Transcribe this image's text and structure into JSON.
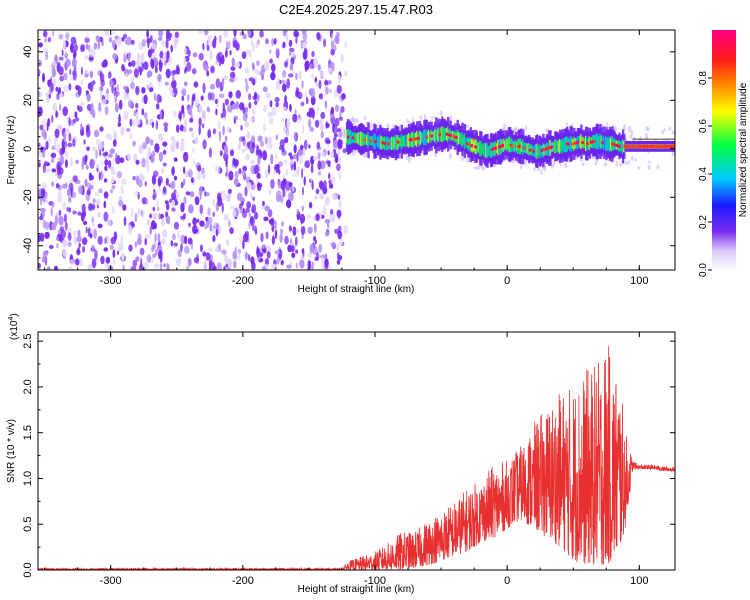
{
  "title": "C2E4.2025.297.15.47.R03",
  "chart_data": [
    {
      "type": "heatmap",
      "xlabel": "Height of straight line (km)",
      "ylabel": "Frequency (Hz)",
      "xlim": [
        -355,
        127
      ],
      "ylim": [
        -50,
        49
      ],
      "xticks": [
        -300,
        -200,
        -100,
        0,
        100
      ],
      "yticks": [
        -40,
        -20,
        0,
        20,
        40
      ],
      "noise_region": [
        -355,
        -122
      ],
      "signal_trace": {
        "x": [
          -122,
          -110,
          -100,
          -90,
          -80,
          -70,
          -60,
          -50,
          -45,
          -40,
          -35,
          -30,
          -25,
          -20,
          -15,
          -10,
          -5,
          0,
          5,
          10,
          15,
          20,
          25,
          30,
          35,
          40,
          45,
          50,
          55,
          60,
          65,
          70,
          75,
          80,
          85,
          90,
          100,
          110,
          120,
          127
        ],
        "y": [
          5,
          4,
          3,
          2,
          3,
          4,
          5,
          6,
          6,
          5,
          4,
          2,
          1,
          0,
          -1,
          0,
          1,
          2,
          1,
          1,
          0,
          -1,
          -1,
          0,
          1,
          1,
          2,
          2,
          3,
          2,
          3,
          3,
          2,
          2,
          1,
          1,
          1,
          1,
          1,
          1
        ]
      },
      "colorbar": {
        "label": "Normalized spectral amplitude",
        "ticks": [
          "0.0",
          "0.2",
          "0.4",
          "0.6",
          "0.8"
        ],
        "range": [
          0,
          1
        ]
      }
    },
    {
      "type": "line",
      "xlabel": "Height of straight line (km)",
      "ylabel": "SNR (10 * v/v)",
      "scale_label": "(x10",
      "scale_exp": "4",
      "scale_close": ")",
      "xlim": [
        -355,
        127
      ],
      "ylim": [
        0,
        2.6
      ],
      "xticks": [
        -300,
        -200,
        -100,
        0,
        100
      ],
      "yticks": [
        "0.0",
        "0.5",
        "1.0",
        "1.5",
        "2.0",
        "2.5"
      ],
      "color": "#e83030",
      "envelope": {
        "x": [
          -355,
          -125,
          -120,
          -100,
          -90,
          -80,
          -70,
          -60,
          -50,
          -40,
          -30,
          -20,
          -10,
          0,
          10,
          20,
          30,
          40,
          50,
          60,
          70,
          75,
          80,
          85,
          90,
          95,
          100,
          110,
          120,
          127
        ],
        "upper": [
          0.02,
          0.02,
          0.1,
          0.2,
          0.3,
          0.42,
          0.42,
          0.55,
          0.65,
          0.75,
          0.9,
          1.0,
          1.15,
          1.2,
          1.35,
          1.6,
          1.8,
          1.95,
          2.05,
          2.2,
          2.3,
          2.55,
          2.3,
          2.1,
          1.5,
          1.2,
          1.15,
          1.15,
          1.13,
          1.12
        ],
        "lower": [
          0.0,
          0.0,
          0.0,
          0.0,
          0.0,
          0.0,
          0.02,
          0.05,
          0.1,
          0.15,
          0.2,
          0.3,
          0.35,
          0.45,
          0.55,
          0.45,
          0.35,
          0.25,
          0.1,
          0.05,
          0.05,
          0.05,
          0.1,
          0.2,
          0.5,
          1.1,
          1.1,
          1.1,
          1.08,
          1.08
        ]
      }
    }
  ]
}
